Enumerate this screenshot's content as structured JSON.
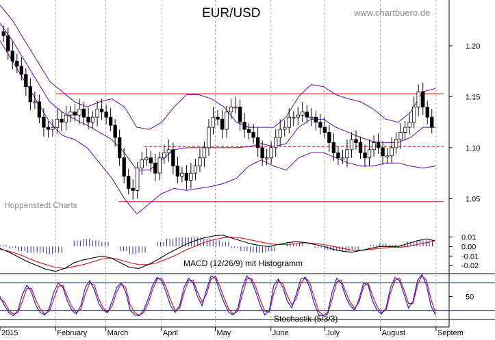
{
  "header": {
    "title": "EUR/USD",
    "source": "www.chartbuero.de"
  },
  "watermark": "Hoppenstedt Charts",
  "colors": {
    "candle": "#000000",
    "bollinger": "#6a00b0",
    "channel": "#e01010",
    "macd": "#000000",
    "signal": "#e01010",
    "histogram": "#2020c0",
    "stoch_k": "#1a1aff",
    "stoch_d": "#e01010",
    "stoch_band": "#0000c8"
  },
  "chart_data": [
    {
      "type": "candlestick",
      "title": "EUR/USD",
      "ylim": [
        1.02,
        1.245
      ],
      "yticks": [
        "1.05",
        "1.10",
        "1.15",
        "1.20"
      ],
      "x_months": [
        "2015",
        "February",
        "March",
        "April",
        "May",
        "June",
        "July",
        "August",
        "Septem"
      ],
      "x_range_days": [
        0,
        248
      ],
      "closes": [
        1.21,
        1.195,
        1.185,
        1.18,
        1.172,
        1.16,
        1.145,
        1.145,
        1.13,
        1.12,
        1.118,
        1.12,
        1.128,
        1.125,
        1.132,
        1.135,
        1.132,
        1.138,
        1.13,
        1.125,
        1.13,
        1.138,
        1.135,
        1.13,
        1.122,
        1.11,
        1.09,
        1.072,
        1.06,
        1.058,
        1.08,
        1.088,
        1.09,
        1.085,
        1.075,
        1.09,
        1.095,
        1.098,
        1.082,
        1.072,
        1.075,
        1.068,
        1.075,
        1.082,
        1.09,
        1.1,
        1.12,
        1.13,
        1.128,
        1.118,
        1.135,
        1.14,
        1.14,
        1.125,
        1.118,
        1.115,
        1.11,
        1.1,
        1.09,
        1.09,
        1.1,
        1.11,
        1.118,
        1.12,
        1.13,
        1.13,
        1.132,
        1.135,
        1.13,
        1.13,
        1.125,
        1.12,
        1.115,
        1.105,
        1.095,
        1.09,
        1.09,
        1.098,
        1.108,
        1.105,
        1.095,
        1.09,
        1.098,
        1.105,
        1.1,
        1.092,
        1.092,
        1.1,
        1.108,
        1.115,
        1.12,
        1.125,
        1.14,
        1.155,
        1.14,
        1.13,
        1.12
      ],
      "bollinger_upper": [
        1.24,
        1.225,
        1.205,
        1.185,
        1.165,
        1.155,
        1.145,
        1.14,
        1.145,
        1.148,
        1.14,
        1.12,
        1.118,
        1.125,
        1.14,
        1.152,
        1.152,
        1.148,
        1.14,
        1.125,
        1.12,
        1.12,
        1.12,
        1.13,
        1.15,
        1.162,
        1.16,
        1.152,
        1.148,
        1.145,
        1.138,
        1.128,
        1.125,
        1.135,
        1.155,
        1.158
      ],
      "bollinger_lower": [
        1.205,
        1.185,
        1.165,
        1.145,
        1.125,
        1.112,
        1.108,
        1.1,
        1.085,
        1.07,
        1.05,
        1.035,
        1.045,
        1.055,
        1.06,
        1.058,
        1.06,
        1.062,
        1.065,
        1.07,
        1.082,
        1.088,
        1.082,
        1.078,
        1.09,
        1.095,
        1.095,
        1.09,
        1.085,
        1.082,
        1.082,
        1.085,
        1.085,
        1.082,
        1.08,
        1.082
      ],
      "bollinger_mid": [
        1.222,
        1.205,
        1.185,
        1.165,
        1.145,
        1.135,
        1.128,
        1.122,
        1.115,
        1.108,
        1.095,
        1.078,
        1.078,
        1.088,
        1.098,
        1.1,
        1.1,
        1.1,
        1.1,
        1.1,
        1.101,
        1.104,
        1.101,
        1.104,
        1.12,
        1.128,
        1.128,
        1.12,
        1.115,
        1.11,
        1.106,
        1.105,
        1.105,
        1.11,
        1.12,
        1.12
      ],
      "channel_upper": 1.153,
      "channel_lower": 1.047,
      "channel_mid": 1.101,
      "channel_upper_x": [
        31,
        248
      ],
      "channel_lower_x": [
        66,
        248
      ]
    },
    {
      "type": "line",
      "title": "MACD (12/26/9) mit Histogramm",
      "ylim": [
        -0.027,
        0.016
      ],
      "yticks": [
        "0.01",
        "0.00",
        "-0.01",
        "-0.02"
      ],
      "macd": [
        -0.002,
        -0.006,
        -0.011,
        -0.016,
        -0.02,
        -0.024,
        -0.026,
        -0.023,
        -0.017,
        -0.014,
        -0.012,
        -0.01,
        -0.012,
        -0.017,
        -0.022,
        -0.023,
        -0.019,
        -0.014,
        -0.008,
        -0.003,
        0.002,
        0.006,
        0.009,
        0.011,
        0.012,
        0.009,
        0.006,
        0.003,
        0.001,
        0.0,
        0.002,
        0.004,
        0.005,
        0.004,
        0.002,
        0.0,
        -0.003,
        -0.005,
        -0.006,
        -0.004,
        -0.002,
        0.0,
        0.0,
        0.0,
        0.003,
        0.006,
        0.008,
        0.006
      ],
      "signal": [
        -0.003,
        -0.005,
        -0.008,
        -0.012,
        -0.016,
        -0.019,
        -0.022,
        -0.023,
        -0.021,
        -0.019,
        -0.016,
        -0.013,
        -0.012,
        -0.014,
        -0.017,
        -0.019,
        -0.019,
        -0.017,
        -0.013,
        -0.009,
        -0.004,
        0.0,
        0.004,
        0.007,
        0.009,
        0.01,
        0.009,
        0.007,
        0.005,
        0.003,
        0.002,
        0.002,
        0.003,
        0.004,
        0.003,
        0.002,
        0.0,
        -0.002,
        -0.004,
        -0.004,
        -0.003,
        -0.002,
        -0.001,
        -0.001,
        0.0,
        0.002,
        0.004,
        0.006
      ]
    },
    {
      "type": "line",
      "title": "Stochastik (5/3/3)",
      "ylim": [
        0,
        100
      ],
      "yticks": [
        "50"
      ],
      "bands": [
        20,
        80
      ],
      "k": [
        50,
        30,
        15,
        8,
        20,
        55,
        75,
        60,
        30,
        15,
        10,
        25,
        60,
        80,
        70,
        40,
        20,
        12,
        30,
        70,
        85,
        65,
        35,
        20,
        15,
        40,
        70,
        80,
        60,
        20,
        10,
        8,
        20,
        45,
        75,
        92,
        85,
        60,
        30,
        15,
        30,
        70,
        90,
        80,
        50,
        30,
        65,
        95,
        90,
        60,
        35,
        15,
        10,
        25,
        70,
        95,
        85,
        60,
        30,
        10,
        20,
        75,
        88,
        70,
        40,
        25,
        55,
        88,
        92,
        70,
        35,
        10,
        8,
        15,
        60,
        90,
        80,
        50,
        30,
        20,
        45,
        80,
        75,
        40,
        20,
        12,
        25,
        70,
        92,
        85,
        55,
        25,
        40,
        85,
        98,
        75,
        30,
        10
      ],
      "d": [
        45,
        38,
        20,
        12,
        15,
        40,
        68,
        68,
        42,
        22,
        12,
        18,
        45,
        72,
        75,
        50,
        28,
        15,
        22,
        55,
        80,
        75,
        45,
        25,
        16,
        30,
        60,
        78,
        70,
        32,
        15,
        9,
        15,
        35,
        65,
        88,
        90,
        70,
        42,
        20,
        24,
        58,
        85,
        86,
        60,
        38,
        55,
        88,
        94,
        72,
        45,
        22,
        12,
        18,
        55,
        88,
        90,
        70,
        42,
        18,
        16,
        58,
        84,
        78,
        52,
        32,
        45,
        78,
        92,
        80,
        48,
        18,
        9,
        12,
        45,
        82,
        86,
        60,
        38,
        24,
        38,
        72,
        80,
        52,
        28,
        15,
        20,
        58,
        86,
        90,
        65,
        35,
        35,
        75,
        96,
        85,
        45,
        15
      ]
    }
  ]
}
